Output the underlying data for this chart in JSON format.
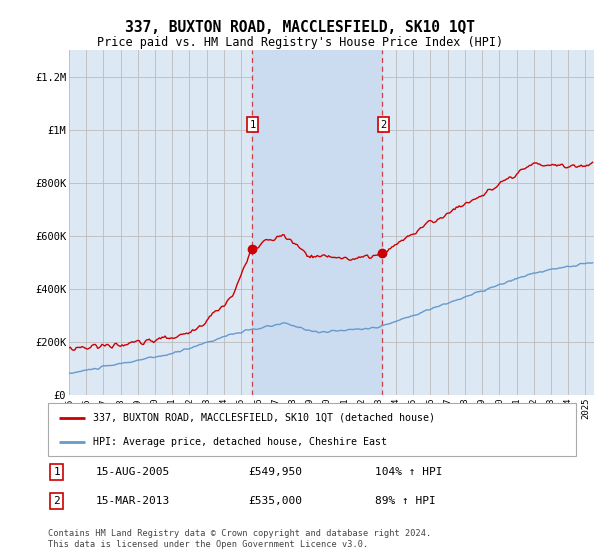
{
  "title": "337, BUXTON ROAD, MACCLESFIELD, SK10 1QT",
  "subtitle": "Price paid vs. HM Land Registry's House Price Index (HPI)",
  "ylabel_ticks": [
    "£0",
    "£200K",
    "£400K",
    "£600K",
    "£800K",
    "£1M",
    "£1.2M"
  ],
  "ytick_vals": [
    0,
    200000,
    400000,
    600000,
    800000,
    1000000,
    1200000
  ],
  "ylim": [
    0,
    1300000
  ],
  "xlim_start": 1995.0,
  "xlim_end": 2025.5,
  "sale1_date": 2005.62,
  "sale1_price": 549950,
  "sale2_date": 2013.21,
  "sale2_price": 535000,
  "sale1_label": "1",
  "sale2_label": "2",
  "sale1_info": "15-AUG-2005",
  "sale1_price_str": "£549,950",
  "sale1_hpi": "104% ↑ HPI",
  "sale2_info": "15-MAR-2013",
  "sale2_price_str": "£535,000",
  "sale2_hpi": "89% ↑ HPI",
  "legend_line1": "337, BUXTON ROAD, MACCLESFIELD, SK10 1QT (detached house)",
  "legend_line2": "HPI: Average price, detached house, Cheshire East",
  "footer": "Contains HM Land Registry data © Crown copyright and database right 2024.\nThis data is licensed under the Open Government Licence v3.0.",
  "red_line_color": "#cc0000",
  "blue_line_color": "#6699cc",
  "bg_color": "#dde8f5",
  "shade_color": "#ccdcf0",
  "grid_color": "#bbbbbb",
  "title_fontsize": 10.5,
  "subtitle_fontsize": 8.5
}
